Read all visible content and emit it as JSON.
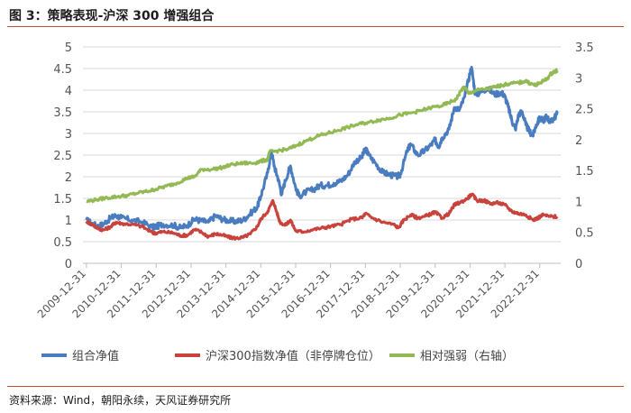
{
  "header": {
    "title": "图 3：策略表现-沪深 300 增强组合"
  },
  "footer": {
    "source": "资料来源：Wind，朝阳永续，天风证券研究所"
  },
  "chart_data": {
    "type": "line",
    "x_ticks": [
      "2009-12-31",
      "2010-12-31",
      "2011-12-31",
      "2012-12-31",
      "2013-12-31",
      "2014-12-31",
      "2015-12-31",
      "2016-12-31",
      "2017-12-31",
      "2018-12-31",
      "2019-12-31",
      "2020-12-31",
      "2021-12-31",
      "2022-12-31"
    ],
    "xlim": [
      2009.9,
      2023.6
    ],
    "y_left": {
      "lim": [
        0,
        5
      ],
      "ticks": [
        "0",
        "0.5",
        "1",
        "1.5",
        "2",
        "2.5",
        "3",
        "3.5",
        "4",
        "4.5",
        "5"
      ]
    },
    "y_right": {
      "lim": [
        0,
        3.5
      ],
      "ticks": [
        "0",
        "0.5",
        "1",
        "1.5",
        "2",
        "2.5",
        "3",
        "3.5"
      ]
    },
    "grid": true,
    "legend_position": "bottom",
    "series": [
      {
        "name": "组合净值",
        "axis": "left",
        "color": "#4a7cc0",
        "points": [
          [
            2010.0,
            1.0
          ],
          [
            2010.2,
            0.9
          ],
          [
            2010.35,
            0.85
          ],
          [
            2010.5,
            0.92
          ],
          [
            2010.7,
            1.05
          ],
          [
            2010.85,
            1.1
          ],
          [
            2011.0,
            1.05
          ],
          [
            2011.3,
            1.0
          ],
          [
            2011.6,
            0.95
          ],
          [
            2011.9,
            0.83
          ],
          [
            2012.0,
            0.85
          ],
          [
            2012.2,
            0.9
          ],
          [
            2012.5,
            0.88
          ],
          [
            2012.7,
            0.82
          ],
          [
            2012.9,
            0.88
          ],
          [
            2013.1,
            1.02
          ],
          [
            2013.3,
            0.98
          ],
          [
            2013.5,
            0.95
          ],
          [
            2013.7,
            1.1
          ],
          [
            2013.9,
            1.02
          ],
          [
            2014.1,
            0.98
          ],
          [
            2014.3,
            0.97
          ],
          [
            2014.5,
            1.0
          ],
          [
            2014.7,
            1.15
          ],
          [
            2014.9,
            1.3
          ],
          [
            2015.0,
            1.55
          ],
          [
            2015.2,
            2.1
          ],
          [
            2015.3,
            2.6
          ],
          [
            2015.4,
            2.2
          ],
          [
            2015.5,
            1.95
          ],
          [
            2015.6,
            1.6
          ],
          [
            2015.7,
            1.9
          ],
          [
            2015.85,
            2.25
          ],
          [
            2016.0,
            1.75
          ],
          [
            2016.1,
            1.55
          ],
          [
            2016.3,
            1.65
          ],
          [
            2016.5,
            1.7
          ],
          [
            2016.7,
            1.8
          ],
          [
            2016.9,
            1.8
          ],
          [
            2017.1,
            1.85
          ],
          [
            2017.3,
            1.9
          ],
          [
            2017.5,
            2.05
          ],
          [
            2017.7,
            2.35
          ],
          [
            2017.9,
            2.45
          ],
          [
            2018.0,
            2.65
          ],
          [
            2018.1,
            2.5
          ],
          [
            2018.3,
            2.3
          ],
          [
            2018.5,
            2.1
          ],
          [
            2018.7,
            2.05
          ],
          [
            2018.9,
            2.0
          ],
          [
            2019.0,
            2.05
          ],
          [
            2019.2,
            2.6
          ],
          [
            2019.3,
            2.75
          ],
          [
            2019.5,
            2.5
          ],
          [
            2019.7,
            2.6
          ],
          [
            2019.9,
            2.75
          ],
          [
            2020.0,
            2.85
          ],
          [
            2020.1,
            2.7
          ],
          [
            2020.2,
            2.9
          ],
          [
            2020.4,
            3.1
          ],
          [
            2020.55,
            3.6
          ],
          [
            2020.7,
            3.55
          ],
          [
            2020.85,
            3.85
          ],
          [
            2021.0,
            4.4
          ],
          [
            2021.05,
            4.5
          ],
          [
            2021.15,
            3.9
          ],
          [
            2021.3,
            3.95
          ],
          [
            2021.5,
            4.05
          ],
          [
            2021.7,
            3.9
          ],
          [
            2021.9,
            3.95
          ],
          [
            2022.0,
            3.85
          ],
          [
            2022.1,
            3.6
          ],
          [
            2022.2,
            3.3
          ],
          [
            2022.3,
            3.1
          ],
          [
            2022.4,
            3.45
          ],
          [
            2022.5,
            3.5
          ],
          [
            2022.6,
            3.2
          ],
          [
            2022.7,
            3.05
          ],
          [
            2022.8,
            2.95
          ],
          [
            2022.9,
            3.2
          ],
          [
            2023.0,
            3.35
          ],
          [
            2023.1,
            3.3
          ],
          [
            2023.2,
            3.4
          ],
          [
            2023.3,
            3.25
          ],
          [
            2023.4,
            3.35
          ],
          [
            2023.5,
            3.45
          ]
        ]
      },
      {
        "name": "沪深300指数净值（非停牌仓位）",
        "axis": "left",
        "color": "#c9423b",
        "points": [
          [
            2010.0,
            0.97
          ],
          [
            2010.2,
            0.88
          ],
          [
            2010.35,
            0.8
          ],
          [
            2010.5,
            0.77
          ],
          [
            2010.7,
            0.85
          ],
          [
            2010.85,
            0.95
          ],
          [
            2011.0,
            0.92
          ],
          [
            2011.3,
            0.9
          ],
          [
            2011.6,
            0.85
          ],
          [
            2011.9,
            0.7
          ],
          [
            2012.0,
            0.7
          ],
          [
            2012.2,
            0.73
          ],
          [
            2012.5,
            0.7
          ],
          [
            2012.7,
            0.64
          ],
          [
            2012.9,
            0.65
          ],
          [
            2013.1,
            0.78
          ],
          [
            2013.3,
            0.72
          ],
          [
            2013.5,
            0.62
          ],
          [
            2013.7,
            0.68
          ],
          [
            2013.9,
            0.65
          ],
          [
            2014.1,
            0.6
          ],
          [
            2014.3,
            0.58
          ],
          [
            2014.5,
            0.6
          ],
          [
            2014.7,
            0.68
          ],
          [
            2014.9,
            0.85
          ],
          [
            2015.0,
            1.02
          ],
          [
            2015.2,
            1.2
          ],
          [
            2015.35,
            1.45
          ],
          [
            2015.45,
            1.2
          ],
          [
            2015.55,
            0.95
          ],
          [
            2015.7,
            0.88
          ],
          [
            2015.85,
            1.0
          ],
          [
            2016.0,
            0.75
          ],
          [
            2016.2,
            0.73
          ],
          [
            2016.5,
            0.78
          ],
          [
            2016.8,
            0.82
          ],
          [
            2017.0,
            0.85
          ],
          [
            2017.3,
            0.9
          ],
          [
            2017.6,
            1.02
          ],
          [
            2017.9,
            1.05
          ],
          [
            2018.0,
            1.15
          ],
          [
            2018.2,
            1.05
          ],
          [
            2018.5,
            0.95
          ],
          [
            2018.8,
            0.9
          ],
          [
            2018.95,
            0.82
          ],
          [
            2019.1,
            1.0
          ],
          [
            2019.3,
            1.12
          ],
          [
            2019.5,
            1.05
          ],
          [
            2019.7,
            1.08
          ],
          [
            2019.9,
            1.15
          ],
          [
            2020.0,
            1.18
          ],
          [
            2020.2,
            1.05
          ],
          [
            2020.4,
            1.15
          ],
          [
            2020.55,
            1.35
          ],
          [
            2020.7,
            1.4
          ],
          [
            2020.9,
            1.48
          ],
          [
            2021.05,
            1.6
          ],
          [
            2021.2,
            1.45
          ],
          [
            2021.4,
            1.45
          ],
          [
            2021.6,
            1.38
          ],
          [
            2021.8,
            1.4
          ],
          [
            2022.0,
            1.35
          ],
          [
            2022.2,
            1.2
          ],
          [
            2022.4,
            1.15
          ],
          [
            2022.6,
            1.12
          ],
          [
            2022.8,
            1.0
          ],
          [
            2022.95,
            1.05
          ],
          [
            2023.1,
            1.12
          ],
          [
            2023.3,
            1.08
          ],
          [
            2023.5,
            1.08
          ]
        ]
      },
      {
        "name": "相对强弱（右轴）",
        "axis": "right",
        "color": "#92b954",
        "points": [
          [
            2010.0,
            1.0
          ],
          [
            2010.3,
            1.03
          ],
          [
            2010.6,
            1.06
          ],
          [
            2010.9,
            1.08
          ],
          [
            2011.2,
            1.1
          ],
          [
            2011.5,
            1.14
          ],
          [
            2011.8,
            1.17
          ],
          [
            2012.0,
            1.2
          ],
          [
            2012.3,
            1.25
          ],
          [
            2012.6,
            1.3
          ],
          [
            2012.9,
            1.38
          ],
          [
            2013.1,
            1.4
          ],
          [
            2013.3,
            1.52
          ],
          [
            2013.6,
            1.52
          ],
          [
            2013.9,
            1.55
          ],
          [
            2014.2,
            1.6
          ],
          [
            2014.5,
            1.62
          ],
          [
            2014.8,
            1.62
          ],
          [
            2015.0,
            1.65
          ],
          [
            2015.2,
            1.68
          ],
          [
            2015.25,
            1.8
          ],
          [
            2015.5,
            1.82
          ],
          [
            2015.8,
            1.85
          ],
          [
            2016.0,
            1.9
          ],
          [
            2016.3,
            1.98
          ],
          [
            2016.6,
            2.05
          ],
          [
            2016.9,
            2.1
          ],
          [
            2017.2,
            2.15
          ],
          [
            2017.5,
            2.2
          ],
          [
            2017.8,
            2.25
          ],
          [
            2018.1,
            2.28
          ],
          [
            2018.4,
            2.32
          ],
          [
            2018.7,
            2.35
          ],
          [
            2019.0,
            2.4
          ],
          [
            2019.3,
            2.43
          ],
          [
            2019.6,
            2.47
          ],
          [
            2019.9,
            2.52
          ],
          [
            2020.2,
            2.55
          ],
          [
            2020.4,
            2.6
          ],
          [
            2020.6,
            2.65
          ],
          [
            2020.75,
            2.8
          ],
          [
            2020.85,
            2.85
          ],
          [
            2020.95,
            2.75
          ],
          [
            2021.2,
            2.8
          ],
          [
            2021.5,
            2.82
          ],
          [
            2021.7,
            2.85
          ],
          [
            2021.9,
            2.88
          ],
          [
            2022.1,
            2.9
          ],
          [
            2022.4,
            2.92
          ],
          [
            2022.6,
            2.95
          ],
          [
            2022.75,
            2.9
          ],
          [
            2022.9,
            2.88
          ],
          [
            2023.0,
            2.92
          ],
          [
            2023.2,
            2.98
          ],
          [
            2023.35,
            3.08
          ],
          [
            2023.5,
            3.12
          ]
        ]
      }
    ]
  }
}
